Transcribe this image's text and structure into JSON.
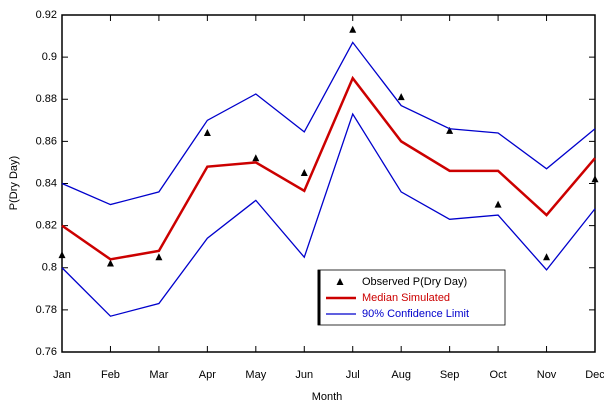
{
  "chart_data": {
    "type": "line",
    "x_label": "Month",
    "y_label": "P(Dry Day)",
    "categories": [
      "Jan",
      "Feb",
      "Mar",
      "Apr",
      "May",
      "Jun",
      "Jul",
      "Aug",
      "Sep",
      "Oct",
      "Nov",
      "Dec"
    ],
    "series": [
      {
        "name": "Observed P(Dry Day)",
        "color": "#000000",
        "style": "markers",
        "values": [
          0.806,
          0.802,
          0.805,
          0.864,
          0.852,
          0.845,
          0.913,
          0.881,
          0.865,
          0.83,
          0.805,
          0.842
        ]
      },
      {
        "name": "Median Simulated",
        "color": "#cc0000",
        "style": "line",
        "width": 2.5,
        "values": [
          0.82,
          0.804,
          0.808,
          0.848,
          0.85,
          0.8365,
          0.89,
          0.86,
          0.846,
          0.846,
          0.825,
          0.852
        ]
      },
      {
        "name": "90% Confidence Limit",
        "color": "#0000cc",
        "style": "line",
        "width": 1.3,
        "values": [
          0.84,
          0.83,
          0.836,
          0.87,
          0.8825,
          0.8645,
          0.907,
          0.877,
          0.866,
          0.864,
          0.847,
          0.866
        ]
      },
      {
        "color": "#0000cc",
        "style": "line",
        "width": 1.3,
        "values": [
          0.8,
          0.777,
          0.783,
          0.814,
          0.832,
          0.805,
          0.873,
          0.836,
          0.823,
          0.825,
          0.799,
          0.828
        ]
      }
    ],
    "ylim": [
      0.76,
      0.92
    ],
    "yticks": [
      0.76,
      0.78,
      0.8,
      0.82,
      0.84,
      0.86,
      0.88,
      0.9,
      0.92
    ],
    "legend": "lower right"
  }
}
